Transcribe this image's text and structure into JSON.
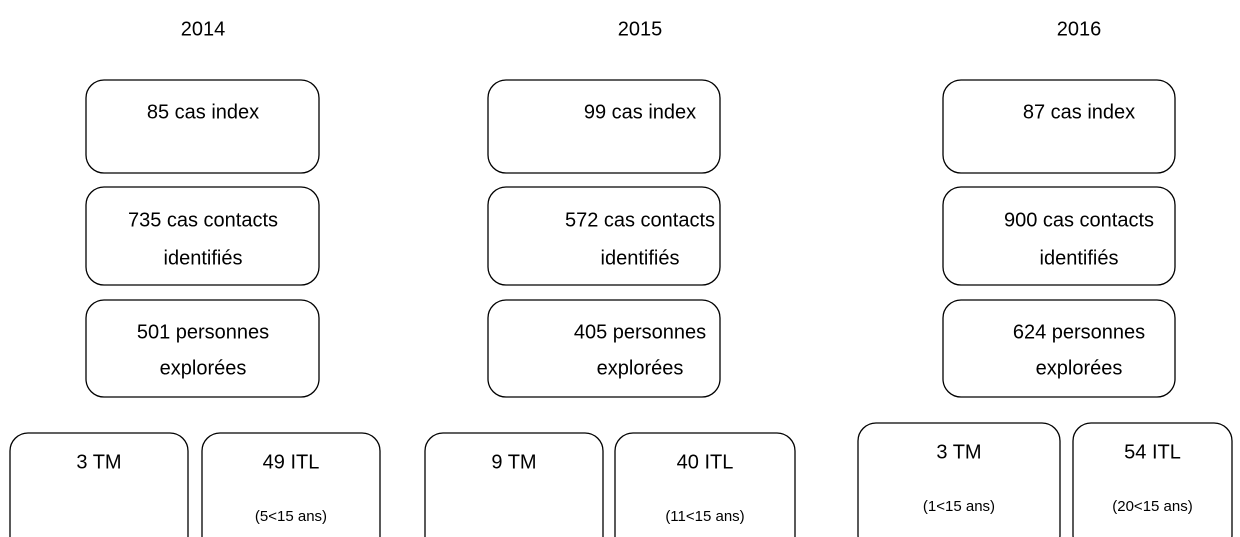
{
  "columns": [
    {
      "year": "2014",
      "index": "85 cas index",
      "contacts": [
        "735 cas contacts",
        "identifiés"
      ],
      "explored": [
        "501 personnes",
        "explorées"
      ],
      "tm": {
        "label": "3 TM"
      },
      "itl": {
        "label": "49 ITL",
        "note": "(5<15 ans)"
      }
    },
    {
      "year": "2015",
      "index": "99 cas index",
      "contacts": [
        "572 cas contacts",
        "identifiés"
      ],
      "explored": [
        "405 personnes",
        "explorées"
      ],
      "tm": {
        "label": "9 TM"
      },
      "itl": {
        "label": "40 ITL",
        "note": "(11<15 ans)"
      }
    },
    {
      "year": "2016",
      "index": "87 cas index",
      "contacts": [
        "900 cas contacts",
        "identifiés"
      ],
      "explored": [
        "624 personnes",
        "explorées"
      ],
      "tm": {
        "label": "3 TM",
        "note": "(1<15 ans)"
      },
      "itl": {
        "label": "54 ITL",
        "note": "(20<15 ans)"
      }
    }
  ]
}
